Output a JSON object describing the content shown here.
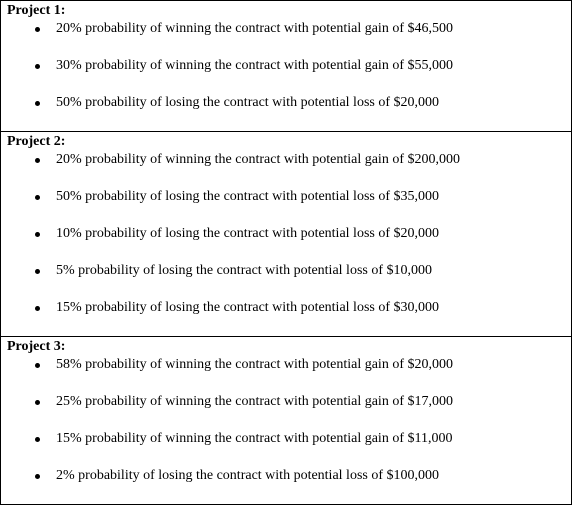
{
  "projects": [
    {
      "title": "Project 1:",
      "items": [
        "20% probability of winning the contract with potential gain of $46,500",
        "30% probability of winning the contract with potential gain of $55,000",
        "50% probability of losing the contract with potential loss of $20,000"
      ]
    },
    {
      "title": "Project 2:",
      "items": [
        "20% probability of winning the contract with potential gain of $200,000",
        "50% probability of losing the contract with potential loss of $35,000",
        "10% probability of losing the contract with potential loss of $20,000",
        "5% probability of losing the contract with potential loss of $10,000",
        "15% probability of losing the contract with potential loss of $30,000"
      ]
    },
    {
      "title": "Project 3:",
      "items": [
        "58% probability of winning the contract with potential gain of $20,000",
        "25% probability of winning the contract with potential gain of $17,000",
        "15% probability of winning the contract with potential gain of $11,000",
        "2% probability of losing the contract with potential loss of $100,000"
      ]
    }
  ]
}
